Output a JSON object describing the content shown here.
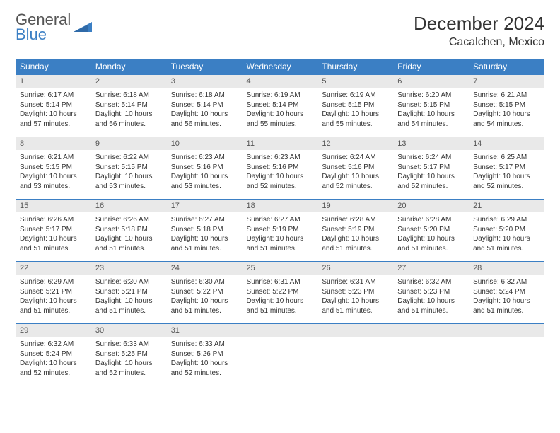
{
  "logo": {
    "word1": "General",
    "word2": "Blue"
  },
  "title": "December 2024",
  "location": "Cacalchen, Mexico",
  "colors": {
    "header_bg": "#3b7fc4",
    "header_text": "#ffffff",
    "daynum_bg": "#e9e9e9",
    "body_text": "#333333",
    "border": "#3b7fc4",
    "logo_blue": "#3b7fc4",
    "logo_gray": "#555555"
  },
  "weekday_labels": [
    "Sunday",
    "Monday",
    "Tuesday",
    "Wednesday",
    "Thursday",
    "Friday",
    "Saturday"
  ],
  "weeks": [
    [
      {
        "n": "1",
        "sr": "Sunrise: 6:17 AM",
        "ss": "Sunset: 5:14 PM",
        "dl": "Daylight: 10 hours and 57 minutes."
      },
      {
        "n": "2",
        "sr": "Sunrise: 6:18 AM",
        "ss": "Sunset: 5:14 PM",
        "dl": "Daylight: 10 hours and 56 minutes."
      },
      {
        "n": "3",
        "sr": "Sunrise: 6:18 AM",
        "ss": "Sunset: 5:14 PM",
        "dl": "Daylight: 10 hours and 56 minutes."
      },
      {
        "n": "4",
        "sr": "Sunrise: 6:19 AM",
        "ss": "Sunset: 5:14 PM",
        "dl": "Daylight: 10 hours and 55 minutes."
      },
      {
        "n": "5",
        "sr": "Sunrise: 6:19 AM",
        "ss": "Sunset: 5:15 PM",
        "dl": "Daylight: 10 hours and 55 minutes."
      },
      {
        "n": "6",
        "sr": "Sunrise: 6:20 AM",
        "ss": "Sunset: 5:15 PM",
        "dl": "Daylight: 10 hours and 54 minutes."
      },
      {
        "n": "7",
        "sr": "Sunrise: 6:21 AM",
        "ss": "Sunset: 5:15 PM",
        "dl": "Daylight: 10 hours and 54 minutes."
      }
    ],
    [
      {
        "n": "8",
        "sr": "Sunrise: 6:21 AM",
        "ss": "Sunset: 5:15 PM",
        "dl": "Daylight: 10 hours and 53 minutes."
      },
      {
        "n": "9",
        "sr": "Sunrise: 6:22 AM",
        "ss": "Sunset: 5:15 PM",
        "dl": "Daylight: 10 hours and 53 minutes."
      },
      {
        "n": "10",
        "sr": "Sunrise: 6:23 AM",
        "ss": "Sunset: 5:16 PM",
        "dl": "Daylight: 10 hours and 53 minutes."
      },
      {
        "n": "11",
        "sr": "Sunrise: 6:23 AM",
        "ss": "Sunset: 5:16 PM",
        "dl": "Daylight: 10 hours and 52 minutes."
      },
      {
        "n": "12",
        "sr": "Sunrise: 6:24 AM",
        "ss": "Sunset: 5:16 PM",
        "dl": "Daylight: 10 hours and 52 minutes."
      },
      {
        "n": "13",
        "sr": "Sunrise: 6:24 AM",
        "ss": "Sunset: 5:17 PM",
        "dl": "Daylight: 10 hours and 52 minutes."
      },
      {
        "n": "14",
        "sr": "Sunrise: 6:25 AM",
        "ss": "Sunset: 5:17 PM",
        "dl": "Daylight: 10 hours and 52 minutes."
      }
    ],
    [
      {
        "n": "15",
        "sr": "Sunrise: 6:26 AM",
        "ss": "Sunset: 5:17 PM",
        "dl": "Daylight: 10 hours and 51 minutes."
      },
      {
        "n": "16",
        "sr": "Sunrise: 6:26 AM",
        "ss": "Sunset: 5:18 PM",
        "dl": "Daylight: 10 hours and 51 minutes."
      },
      {
        "n": "17",
        "sr": "Sunrise: 6:27 AM",
        "ss": "Sunset: 5:18 PM",
        "dl": "Daylight: 10 hours and 51 minutes."
      },
      {
        "n": "18",
        "sr": "Sunrise: 6:27 AM",
        "ss": "Sunset: 5:19 PM",
        "dl": "Daylight: 10 hours and 51 minutes."
      },
      {
        "n": "19",
        "sr": "Sunrise: 6:28 AM",
        "ss": "Sunset: 5:19 PM",
        "dl": "Daylight: 10 hours and 51 minutes."
      },
      {
        "n": "20",
        "sr": "Sunrise: 6:28 AM",
        "ss": "Sunset: 5:20 PM",
        "dl": "Daylight: 10 hours and 51 minutes."
      },
      {
        "n": "21",
        "sr": "Sunrise: 6:29 AM",
        "ss": "Sunset: 5:20 PM",
        "dl": "Daylight: 10 hours and 51 minutes."
      }
    ],
    [
      {
        "n": "22",
        "sr": "Sunrise: 6:29 AM",
        "ss": "Sunset: 5:21 PM",
        "dl": "Daylight: 10 hours and 51 minutes."
      },
      {
        "n": "23",
        "sr": "Sunrise: 6:30 AM",
        "ss": "Sunset: 5:21 PM",
        "dl": "Daylight: 10 hours and 51 minutes."
      },
      {
        "n": "24",
        "sr": "Sunrise: 6:30 AM",
        "ss": "Sunset: 5:22 PM",
        "dl": "Daylight: 10 hours and 51 minutes."
      },
      {
        "n": "25",
        "sr": "Sunrise: 6:31 AM",
        "ss": "Sunset: 5:22 PM",
        "dl": "Daylight: 10 hours and 51 minutes."
      },
      {
        "n": "26",
        "sr": "Sunrise: 6:31 AM",
        "ss": "Sunset: 5:23 PM",
        "dl": "Daylight: 10 hours and 51 minutes."
      },
      {
        "n": "27",
        "sr": "Sunrise: 6:32 AM",
        "ss": "Sunset: 5:23 PM",
        "dl": "Daylight: 10 hours and 51 minutes."
      },
      {
        "n": "28",
        "sr": "Sunrise: 6:32 AM",
        "ss": "Sunset: 5:24 PM",
        "dl": "Daylight: 10 hours and 51 minutes."
      }
    ],
    [
      {
        "n": "29",
        "sr": "Sunrise: 6:32 AM",
        "ss": "Sunset: 5:24 PM",
        "dl": "Daylight: 10 hours and 52 minutes."
      },
      {
        "n": "30",
        "sr": "Sunrise: 6:33 AM",
        "ss": "Sunset: 5:25 PM",
        "dl": "Daylight: 10 hours and 52 minutes."
      },
      {
        "n": "31",
        "sr": "Sunrise: 6:33 AM",
        "ss": "Sunset: 5:26 PM",
        "dl": "Daylight: 10 hours and 52 minutes."
      },
      null,
      null,
      null,
      null
    ]
  ]
}
